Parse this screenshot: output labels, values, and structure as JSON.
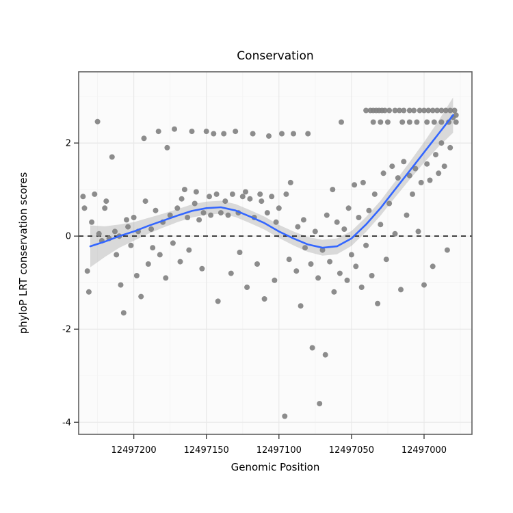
{
  "chart_data": {
    "type": "scatter",
    "title": "Conservation",
    "xlabel": "Genomic Position",
    "ylabel": "phyloP LRT conservation scores",
    "x_reversed": true,
    "xlim": [
      12497238,
      12496967
    ],
    "ylim": [
      -4.26,
      3.53
    ],
    "x_ticks": [
      {
        "value": 12497200,
        "label": "12497200"
      },
      {
        "value": 12497150,
        "label": "12497150"
      },
      {
        "value": 12497100,
        "label": "12497100"
      },
      {
        "value": 12497050,
        "label": "12497050"
      },
      {
        "value": 12497000,
        "label": "12497000"
      }
    ],
    "y_ticks": [
      {
        "value": -4,
        "label": "-4"
      },
      {
        "value": -2,
        "label": "-2"
      },
      {
        "value": 0,
        "label": "0"
      },
      {
        "value": 2,
        "label": "2"
      }
    ],
    "x_minor": [
      12497225,
      12497175,
      12497125,
      12497075,
      12497025,
      12496975
    ],
    "y_minor": [
      -3,
      -1,
      1,
      3
    ],
    "zero_line_y": 0,
    "legend": "none",
    "grid": "on",
    "colors": {
      "point": "#7f7f7f",
      "line": "#3366FF",
      "ribbon": "#9c9c9c",
      "grid_major": "#e8e8e8",
      "grid_minor": "#f4f4f4",
      "panel_bg": "#fbfbfb",
      "panel_border": "#5f5f5f",
      "dashed_line": "#000000",
      "tick": "#333333",
      "tick_label": "#000000"
    },
    "points": [
      [
        12497235,
        0.85
      ],
      [
        12497234,
        0.6
      ],
      [
        12497232,
        -0.75
      ],
      [
        12497231,
        -1.2
      ],
      [
        12497229,
        0.3
      ],
      [
        12497227,
        0.9
      ],
      [
        12497225,
        2.46
      ],
      [
        12497224,
        0.05
      ],
      [
        12497222,
        -0.1
      ],
      [
        12497220,
        0.6
      ],
      [
        12497219,
        0.75
      ],
      [
        12497217,
        -0.05
      ],
      [
        12497215,
        1.7
      ],
      [
        12497213,
        0.1
      ],
      [
        12497212,
        -0.4
      ],
      [
        12497210,
        0.0
      ],
      [
        12497209,
        -1.05
      ],
      [
        12497207,
        -1.65
      ],
      [
        12497205,
        0.35
      ],
      [
        12497204,
        0.2
      ],
      [
        12497202,
        -0.2
      ],
      [
        12497200,
        0.4
      ],
      [
        12497198,
        -0.85
      ],
      [
        12497197,
        0.1
      ],
      [
        12497195,
        -1.3
      ],
      [
        12497193,
        2.1
      ],
      [
        12497192,
        0.75
      ],
      [
        12497190,
        -0.6
      ],
      [
        12497188,
        0.15
      ],
      [
        12497187,
        -0.25
      ],
      [
        12497185,
        0.55
      ],
      [
        12497183,
        2.25
      ],
      [
        12497182,
        -0.4
      ],
      [
        12497180,
        0.3
      ],
      [
        12497178,
        -0.9
      ],
      [
        12497177,
        1.9
      ],
      [
        12497175,
        0.45
      ],
      [
        12497173,
        -0.15
      ],
      [
        12497172,
        2.3
      ],
      [
        12497170,
        0.6
      ],
      [
        12497168,
        -0.55
      ],
      [
        12497167,
        0.8
      ],
      [
        12497165,
        1.0
      ],
      [
        12497163,
        0.4
      ],
      [
        12497162,
        -0.3
      ],
      [
        12497160,
        2.25
      ],
      [
        12497158,
        0.7
      ],
      [
        12497157,
        0.95
      ],
      [
        12497155,
        0.35
      ],
      [
        12497153,
        -0.7
      ],
      [
        12497152,
        0.5
      ],
      [
        12497150,
        2.25
      ],
      [
        12497148,
        0.85
      ],
      [
        12497147,
        0.45
      ],
      [
        12497145,
        2.2
      ],
      [
        12497143,
        0.9
      ],
      [
        12497142,
        -1.4
      ],
      [
        12497140,
        0.5
      ],
      [
        12497138,
        2.2
      ],
      [
        12497137,
        0.75
      ],
      [
        12497135,
        0.45
      ],
      [
        12497133,
        -0.8
      ],
      [
        12497132,
        0.9
      ],
      [
        12497130,
        2.25
      ],
      [
        12497128,
        0.5
      ],
      [
        12497127,
        -0.35
      ],
      [
        12497125,
        0.85
      ],
      [
        12497123,
        0.95
      ],
      [
        12497122,
        -1.1
      ],
      [
        12497120,
        0.8
      ],
      [
        12497118,
        2.2
      ],
      [
        12497117,
        0.4
      ],
      [
        12497115,
        -0.6
      ],
      [
        12497113,
        0.9
      ],
      [
        12497112,
        0.75
      ],
      [
        12497110,
        -1.35
      ],
      [
        12497108,
        0.5
      ],
      [
        12497107,
        2.15
      ],
      [
        12497105,
        0.85
      ],
      [
        12497103,
        -0.95
      ],
      [
        12497102,
        0.3
      ],
      [
        12497100,
        0.6
      ],
      [
        12497098,
        2.2
      ],
      [
        12497096,
        -3.87
      ],
      [
        12497095,
        0.9
      ],
      [
        12497093,
        -0.5
      ],
      [
        12497092,
        1.15
      ],
      [
        12497090,
        2.2
      ],
      [
        12497088,
        -0.75
      ],
      [
        12497087,
        0.2
      ],
      [
        12497085,
        -1.5
      ],
      [
        12497083,
        0.35
      ],
      [
        12497082,
        -0.25
      ],
      [
        12497080,
        2.2
      ],
      [
        12497078,
        -0.6
      ],
      [
        12497077,
        -2.4
      ],
      [
        12497075,
        0.1
      ],
      [
        12497073,
        -0.9
      ],
      [
        12497072,
        -3.6
      ],
      [
        12497070,
        -0.3
      ],
      [
        12497068,
        -2.55
      ],
      [
        12497067,
        0.45
      ],
      [
        12497065,
        -0.55
      ],
      [
        12497063,
        1.0
      ],
      [
        12497062,
        -1.2
      ],
      [
        12497060,
        0.3
      ],
      [
        12497058,
        -0.8
      ],
      [
        12497057,
        2.45
      ],
      [
        12497055,
        0.15
      ],
      [
        12497053,
        -0.95
      ],
      [
        12497052,
        0.6
      ],
      [
        12497050,
        -0.4
      ],
      [
        12497048,
        1.1
      ],
      [
        12497047,
        -0.65
      ],
      [
        12497045,
        0.4
      ],
      [
        12497043,
        -1.1
      ],
      [
        12497042,
        1.15
      ],
      [
        12497040,
        -0.2
      ],
      [
        12497038,
        0.55
      ],
      [
        12497036,
        -0.85
      ],
      [
        12497034,
        0.9
      ],
      [
        12497032,
        -1.45
      ],
      [
        12497030,
        0.25
      ],
      [
        12497028,
        1.35
      ],
      [
        12497026,
        -0.5
      ],
      [
        12497024,
        0.7
      ],
      [
        12497022,
        1.5
      ],
      [
        12497020,
        0.05
      ],
      [
        12497018,
        1.25
      ],
      [
        12497016,
        -1.15
      ],
      [
        12497014,
        1.6
      ],
      [
        12497012,
        0.45
      ],
      [
        12497010,
        1.3
      ],
      [
        12497008,
        0.9
      ],
      [
        12497006,
        1.45
      ],
      [
        12497004,
        0.1
      ],
      [
        12497002,
        1.15
      ],
      [
        12497000,
        -1.05
      ],
      [
        12496998,
        1.55
      ],
      [
        12496996,
        1.2
      ],
      [
        12496994,
        -0.65
      ],
      [
        12496992,
        1.75
      ],
      [
        12496990,
        1.35
      ],
      [
        12496988,
        2.0
      ],
      [
        12496986,
        1.5
      ],
      [
        12496984,
        -0.3
      ],
      [
        12496982,
        1.9
      ],
      [
        12496980,
        2.55
      ],
      [
        12496978,
        2.6
      ],
      [
        12497040,
        2.7
      ],
      [
        12497037,
        2.7
      ],
      [
        12497035,
        2.7
      ],
      [
        12497033,
        2.7
      ],
      [
        12497031,
        2.7
      ],
      [
        12497029,
        2.7
      ],
      [
        12497027,
        2.7
      ],
      [
        12497024,
        2.7
      ],
      [
        12497020,
        2.7
      ],
      [
        12497017,
        2.7
      ],
      [
        12497014,
        2.7
      ],
      [
        12497010,
        2.7
      ],
      [
        12497007,
        2.7
      ],
      [
        12497003,
        2.7
      ],
      [
        12497000,
        2.7
      ],
      [
        12496997,
        2.7
      ],
      [
        12496994,
        2.7
      ],
      [
        12496991,
        2.7
      ],
      [
        12496988,
        2.7
      ],
      [
        12496985,
        2.7
      ],
      [
        12496982,
        2.7
      ],
      [
        12496979,
        2.7
      ],
      [
        12497035,
        2.45
      ],
      [
        12497030,
        2.45
      ],
      [
        12497025,
        2.45
      ],
      [
        12497015,
        2.45
      ],
      [
        12497010,
        2.45
      ],
      [
        12497005,
        2.45
      ],
      [
        12496998,
        2.45
      ],
      [
        12496993,
        2.45
      ],
      [
        12496988,
        2.45
      ],
      [
        12496983,
        2.45
      ],
      [
        12496978,
        2.45
      ]
    ],
    "smooth": {
      "x": [
        12497230,
        12497220,
        12497210,
        12497200,
        12497190,
        12497180,
        12497170,
        12497160,
        12497150,
        12497140,
        12497130,
        12497120,
        12497110,
        12497100,
        12497090,
        12497080,
        12497070,
        12497060,
        12497050,
        12497040,
        12497030,
        12497020,
        12497010,
        12497000,
        12496990,
        12496980
      ],
      "y": [
        -0.22,
        -0.12,
        0.0,
        0.1,
        0.22,
        0.33,
        0.44,
        0.54,
        0.6,
        0.62,
        0.55,
        0.42,
        0.28,
        0.1,
        -0.05,
        -0.18,
        -0.25,
        -0.22,
        -0.05,
        0.25,
        0.6,
        1.0,
        1.4,
        1.8,
        2.2,
        2.6
      ],
      "ci": [
        0.45,
        0.33,
        0.25,
        0.2,
        0.17,
        0.15,
        0.14,
        0.14,
        0.14,
        0.14,
        0.14,
        0.14,
        0.14,
        0.14,
        0.15,
        0.16,
        0.17,
        0.17,
        0.16,
        0.16,
        0.16,
        0.17,
        0.19,
        0.22,
        0.28,
        0.38
      ]
    }
  }
}
